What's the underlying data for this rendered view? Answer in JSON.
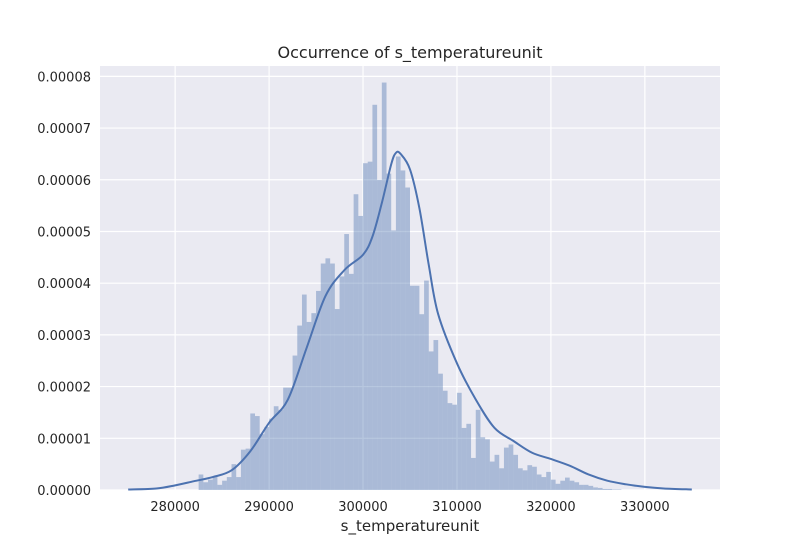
{
  "chart_data": {
    "type": "bar",
    "title": "Occurrence of s_temperatureunit",
    "xlabel": "s_temperatureunit",
    "ylabel": "",
    "xlim": [
      272000,
      338000
    ],
    "ylim": [
      0,
      8.2e-05
    ],
    "grid": true,
    "x_ticks": [
      280000,
      290000,
      300000,
      310000,
      320000,
      330000
    ],
    "x_tick_labels": [
      "280000",
      "290000",
      "300000",
      "310000",
      "320000",
      "330000"
    ],
    "y_ticks": [
      0,
      1e-05,
      2e-05,
      3e-05,
      4e-05,
      5e-05,
      6e-05,
      7e-05,
      8e-05
    ],
    "y_tick_labels": [
      "0.00000",
      "0.00001",
      "0.00002",
      "0.00003",
      "0.00004",
      "0.00005",
      "0.00006",
      "0.00007",
      "0.00008"
    ],
    "colors": {
      "bars": "#4c72b0",
      "kde_line": "#4c72b0",
      "plot_bg": "#eaeaf2",
      "grid": "#ffffff"
    },
    "histogram": {
      "bin_start": 282500,
      "bin_width": 500,
      "values": [
        3e-06,
        1.5e-06,
        2e-06,
        2.5e-06,
        1e-06,
        1.8e-06,
        2.5e-06,
        5e-06,
        2.5e-06,
        7.8e-06,
        8e-06,
        1.48e-05,
        1.43e-05,
        1.08e-05,
        1.22e-05,
        1.38e-05,
        1.62e-05,
        1.55e-05,
        1.98e-05,
        1.98e-05,
        2.6e-05,
        3.18e-05,
        3.78e-05,
        3.25e-05,
        3.42e-05,
        3.85e-05,
        4.38e-05,
        4.48e-05,
        4.38e-05,
        3.5e-05,
        4.13e-05,
        4.95e-05,
        4.18e-05,
        5.72e-05,
        5.3e-05,
        6.32e-05,
        6.35e-05,
        7.45e-05,
        6e-05,
        7.88e-05,
        6.12e-05,
        5.02e-05,
        6.45e-05,
        6.18e-05,
        5.85e-05,
        3.95e-05,
        3.95e-05,
        3.4e-05,
        4.05e-05,
        2.68e-05,
        2.9e-05,
        2.25e-05,
        1.92e-05,
        1.68e-05,
        1.65e-05,
        1.88e-05,
        1.2e-05,
        1.28e-05,
        6.2e-06,
        1.55e-05,
        1.02e-05,
        9.8e-06,
        5.5e-06,
        6.8e-06,
        4.2e-06,
        8.2e-06,
        8.8e-06,
        6.8e-06,
        4.2e-06,
        3.8e-06,
        4.8e-06,
        4.5e-06,
        3e-06,
        2.5e-06,
        3.5e-06,
        2e-06,
        1.2e-06,
        1.8e-06,
        2.4e-06,
        1.8e-06,
        1.5e-06,
        1e-06,
        1e-06,
        8e-07,
        5e-07,
        4e-07,
        2e-07,
        2e-07,
        1e-07,
        1e-07
      ]
    },
    "kde": {
      "x": [
        275000,
        278000,
        280000,
        282000,
        284000,
        286000,
        288000,
        290000,
        292000,
        294000,
        296000,
        298000,
        300000,
        301000,
        302000,
        303000,
        303500,
        304000,
        305000,
        306000,
        307000,
        308000,
        310000,
        312000,
        314000,
        316000,
        318000,
        320000,
        322000,
        324000,
        326000,
        328000,
        330000,
        332000,
        335000
      ],
      "y": [
        1e-07,
        3e-07,
        9e-07,
        1.7e-06,
        2.5e-06,
        3.8e-06,
        7.5e-06,
        1.3e-05,
        1.75e-05,
        2.75e-05,
        3.75e-05,
        4.25e-05,
        4.55e-05,
        4.9e-05,
        5.55e-05,
        6.3e-05,
        6.52e-05,
        6.5e-05,
        6.2e-05,
        5.45e-05,
        4.35e-05,
        3.4e-05,
        2.45e-05,
        1.75e-05,
        1.2e-05,
        9.5e-06,
        7.2e-06,
        6e-06,
        4.7e-06,
        3e-06,
        1.8e-06,
        1.1e-06,
        6e-07,
        3e-07,
        1e-07
      ]
    }
  }
}
